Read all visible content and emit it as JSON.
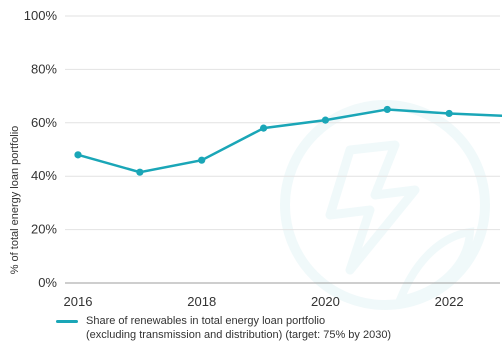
{
  "chart_data": {
    "type": "line",
    "ylabel": "% of total energy loan portfolio",
    "ylim": [
      0,
      100
    ],
    "yticks": [
      0,
      20,
      40,
      60,
      80,
      100
    ],
    "ytick_labels": [
      "0%",
      "20%",
      "40%",
      "60%",
      "80%",
      "100%"
    ],
    "xlim": [
      2016,
      2023
    ],
    "xticks": [
      2016,
      2018,
      2020,
      2022
    ],
    "xtick_labels": [
      "2016",
      "2018",
      "2020",
      "2022"
    ],
    "grid": "horizontal",
    "legend_position": "bottom-left",
    "series": [
      {
        "name_line1": "Share of renewables in total energy loan portfolio",
        "name_line2": "(excluding transmission and distribution) (target: 75% by 2030)",
        "color": "#1aa6b7",
        "x": [
          2016,
          2017,
          2018,
          2019,
          2020,
          2021,
          2022,
          2023
        ],
        "y": [
          48,
          41.5,
          46,
          58,
          61,
          65,
          63.5,
          62.5
        ]
      }
    ]
  }
}
